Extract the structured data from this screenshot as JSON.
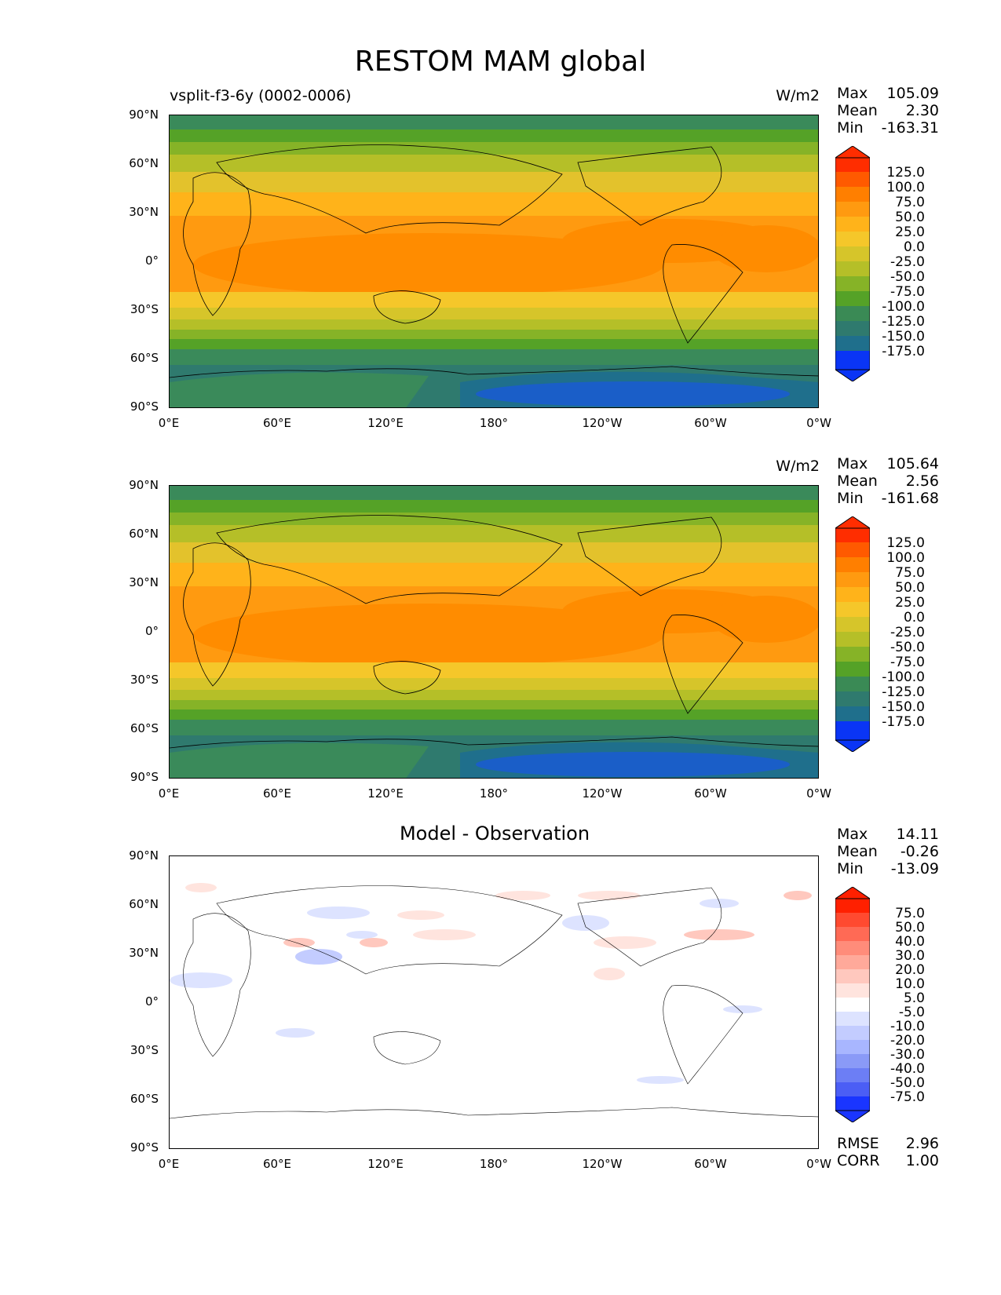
{
  "title": "RESTOM MAM global",
  "lat_labels": [
    "90°N",
    "60°N",
    "30°N",
    "0°",
    "30°S",
    "60°S",
    "90°S"
  ],
  "lon_labels": [
    "0°E",
    "60°E",
    "120°E",
    "180°",
    "120°W",
    "60°W",
    "0°W"
  ],
  "panels": [
    {
      "title_left": "vsplit-f3-6y (0002-0006)",
      "title_center": "",
      "units": "W/m2",
      "stats": {
        "max_label": "Max",
        "max": "105.09",
        "mean_label": "Mean",
        "mean": "2.30",
        "min_label": "Min",
        "min": "-163.31"
      },
      "colorbar_labels": [
        "125.0",
        "100.0",
        "75.0",
        "50.0",
        "25.0",
        "0.0",
        "-25.0",
        "-50.0",
        "-75.0",
        "-100.0",
        "-125.0",
        "-150.0",
        "-175.0"
      ]
    },
    {
      "title_left": "",
      "title_center": "",
      "units": "W/m2",
      "stats": {
        "max_label": "Max",
        "max": "105.64",
        "mean_label": "Mean",
        "mean": "2.56",
        "min_label": "Min",
        "min": "-161.68"
      },
      "colorbar_labels": [
        "125.0",
        "100.0",
        "75.0",
        "50.0",
        "25.0",
        "0.0",
        "-25.0",
        "-50.0",
        "-75.0",
        "-100.0",
        "-125.0",
        "-150.0",
        "-175.0"
      ]
    },
    {
      "title_left": "",
      "title_center": "Model - Observation",
      "units": "",
      "stats": {
        "max_label": "Max",
        "max": "14.11",
        "mean_label": "Mean",
        "mean": "-0.26",
        "min_label": "Min",
        "min": "-13.09"
      },
      "colorbar_labels": [
        "75.0",
        "50.0",
        "40.0",
        "30.0",
        "20.0",
        "10.0",
        "5.0",
        "-5.0",
        "-10.0",
        "-20.0",
        "-30.0",
        "-40.0",
        "-50.0",
        "-75.0"
      ],
      "rmse_label": "RMSE",
      "rmse": "2.96",
      "corr_label": "CORR",
      "corr": "1.00"
    }
  ],
  "colors": {
    "restom_scale": [
      "#ff2d00",
      "#ff5a00",
      "#ff7f00",
      "#ff9a10",
      "#ffb31a",
      "#f5c72a",
      "#d6c52a",
      "#b5bf28",
      "#86b327",
      "#55a227",
      "#3a8a55",
      "#2f7a6e",
      "#1f6f8c",
      "#1a5ec8",
      "#0a35f5"
    ],
    "diff_scale": [
      "#ff2000",
      "#ff4a30",
      "#ff6a55",
      "#ff8c7a",
      "#ffa99a",
      "#ffc8be",
      "#ffe4de",
      "#ffffff",
      "#dde3ff",
      "#c3ccff",
      "#a8b6ff",
      "#8a9af7",
      "#6c7ef5",
      "#4b5ef5",
      "#1a35ff"
    ]
  }
}
